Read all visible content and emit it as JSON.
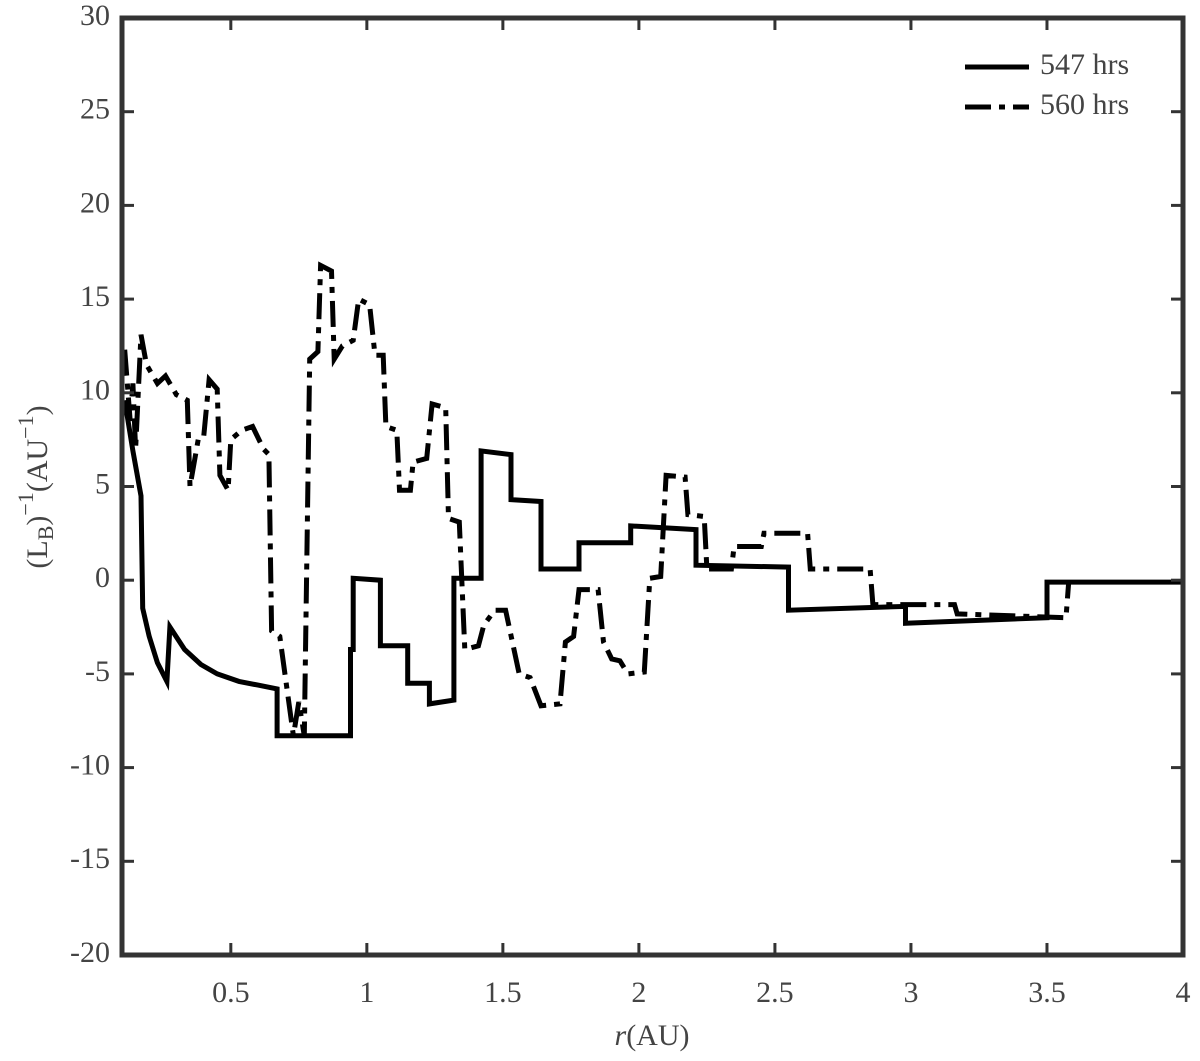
{
  "chart_data": {
    "type": "line",
    "x_label": [
      "r",
      "(AU)"
    ],
    "y_label": [
      "(L",
      "B",
      ")",
      "−1",
      "(AU",
      "−1",
      ")"
    ],
    "xlim": [
      0.1,
      4
    ],
    "ylim": [
      -20,
      30
    ],
    "xticks": [
      0.5,
      1,
      1.5,
      2,
      2.5,
      3,
      3.5,
      4
    ],
    "yticks": [
      -20,
      -15,
      -10,
      -5,
      0,
      5,
      10,
      15,
      20,
      25,
      30
    ],
    "legend": "top-right",
    "series": [
      {
        "name": "547 hrs",
        "color": "#000000",
        "line_style": "solid",
        "x": [
          0.11,
          0.14,
          0.17,
          0.176,
          0.2,
          0.23,
          0.265,
          0.276,
          0.33,
          0.39,
          0.45,
          0.53,
          0.6,
          0.67,
          0.67,
          0.94,
          0.94,
          0.95,
          0.95,
          1.05,
          1.05,
          1.15,
          1.15,
          1.23,
          1.23,
          1.32,
          1.32,
          1.42,
          1.42,
          1.53,
          1.53,
          1.64,
          1.64,
          1.78,
          1.78,
          1.97,
          1.97,
          2.21,
          2.21,
          2.55,
          2.55,
          2.98,
          2.98,
          3.5,
          3.5,
          4.0
        ],
        "values": [
          9.6,
          6.9,
          4.5,
          -1.5,
          -3.0,
          -4.4,
          -5.4,
          -2.5,
          -3.7,
          -4.5,
          -5.0,
          -5.4,
          -5.6,
          -5.8,
          -8.3,
          -8.3,
          -3.7,
          -3.7,
          0.1,
          0,
          -3.5,
          -3.5,
          -5.5,
          -5.5,
          -6.6,
          -6.4,
          0.1,
          0.1,
          6.9,
          6.7,
          4.3,
          4.2,
          0.6,
          0.6,
          2.0,
          2.0,
          2.9,
          2.7,
          0.8,
          0.7,
          -1.6,
          -1.4,
          -2.3,
          -2.0,
          -0.1,
          -0.1
        ]
      },
      {
        "name": "560 hrs",
        "color": "#000000",
        "line_style": "dashdot",
        "x": [
          0.11,
          0.13,
          0.14,
          0.15,
          0.17,
          0.19,
          0.23,
          0.26,
          0.3,
          0.34,
          0.35,
          0.38,
          0.4,
          0.42,
          0.45,
          0.46,
          0.49,
          0.5,
          0.54,
          0.58,
          0.62,
          0.64,
          0.65,
          0.68,
          0.73,
          0.75,
          0.77,
          0.79,
          0.82,
          0.83,
          0.87,
          0.88,
          0.91,
          0.95,
          0.97,
          1.01,
          1.03,
          1.06,
          1.07,
          1.11,
          1.12,
          1.16,
          1.17,
          1.22,
          1.24,
          1.29,
          1.3,
          1.34,
          1.36,
          1.41,
          1.43,
          1.47,
          1.51,
          1.56,
          1.6,
          1.64,
          1.71,
          1.73,
          1.76,
          1.78,
          1.85,
          1.87,
          1.9,
          1.93,
          1.96,
          2.02,
          2.04,
          2.08,
          2.1,
          2.17,
          2.18,
          2.24,
          2.25,
          2.34,
          2.35,
          2.45,
          2.46,
          2.62,
          2.63,
          2.85,
          2.86,
          3.16,
          3.17,
          3.57,
          3.58
        ],
        "values": [
          12.3,
          8.5,
          10.5,
          7.0,
          13.1,
          11.5,
          10.5,
          10.9,
          9.9,
          9.6,
          5.0,
          7.5,
          7.6,
          10.7,
          10.2,
          5.6,
          4.8,
          7.5,
          8.0,
          8.2,
          7.0,
          6.7,
          -2.7,
          -3.0,
          -8.3,
          -6.5,
          -8.3,
          11.8,
          12.2,
          16.8,
          16.5,
          11.8,
          12.5,
          12.8,
          15.0,
          14.7,
          12.0,
          12.0,
          8.2,
          8.0,
          4.8,
          4.8,
          6.3,
          6.5,
          9.4,
          9.2,
          3.3,
          3.1,
          -3.7,
          -3.5,
          -2.4,
          -1.6,
          -1.6,
          -5.0,
          -5.2,
          -6.7,
          -6.6,
          -3.3,
          -3.0,
          -0.5,
          -0.5,
          -3.3,
          -4.2,
          -4.3,
          -5.0,
          -4.9,
          0.1,
          0.2,
          5.6,
          5.5,
          3.5,
          3.4,
          0.6,
          0.6,
          1.8,
          1.8,
          2.5,
          2.5,
          0.6,
          0.6,
          -1.3,
          -1.3,
          -1.8,
          -2.0,
          -0.1
        ]
      }
    ]
  }
}
